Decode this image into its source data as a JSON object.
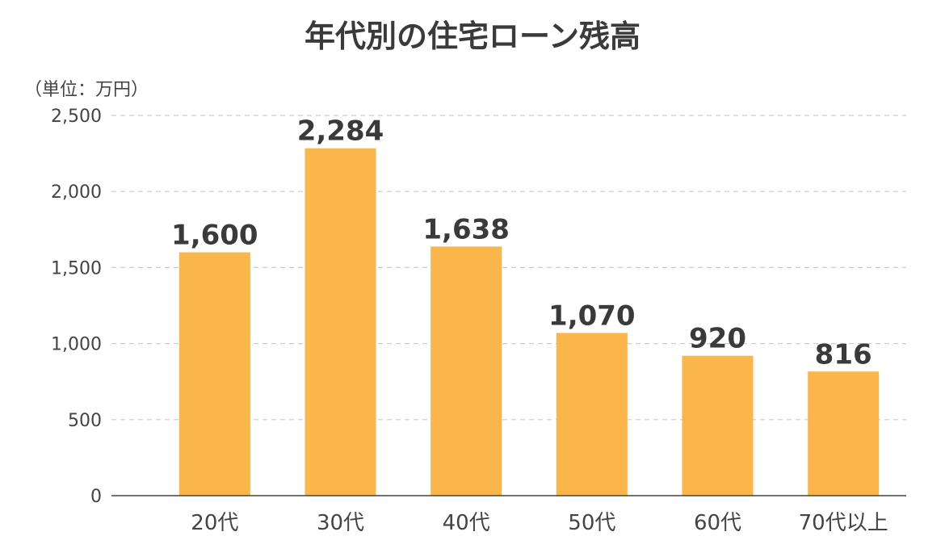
{
  "chart_data": {
    "type": "bar",
    "title": "年代別の住宅ローン残高",
    "unit_label": "（単位：万円）",
    "categories": [
      "20代",
      "30代",
      "40代",
      "50代",
      "60代",
      "70代以上"
    ],
    "values": [
      1600,
      2284,
      1638,
      1070,
      920,
      816
    ],
    "value_labels": [
      "1,600",
      "2,284",
      "1,638",
      "1,070",
      "920",
      "816"
    ],
    "ylim": [
      0,
      2500
    ],
    "yticks": [
      0,
      500,
      1000,
      1500,
      2000,
      2500
    ],
    "ytick_labels": [
      "0",
      "500",
      "1,000",
      "1,500",
      "2,000",
      "2,500"
    ],
    "grid": true,
    "legend": "none",
    "colors": {
      "bar": "#FBB64B",
      "text": "#3a3a3a",
      "grid": "#cccccc",
      "axis": "#444444"
    }
  }
}
